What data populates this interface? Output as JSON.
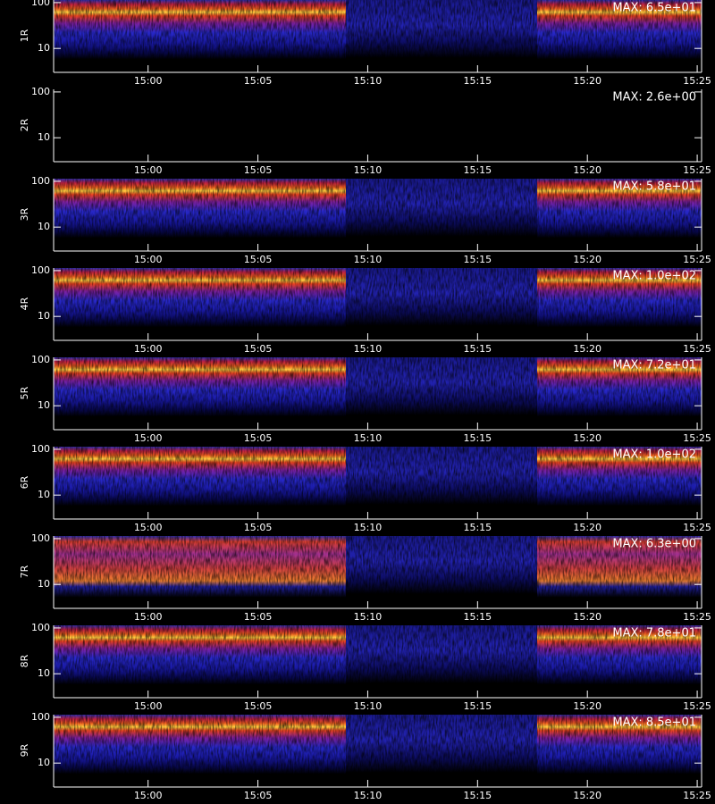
{
  "chart_data": [
    {
      "type": "spectrogram",
      "ylabel": "1R",
      "annotation": "MAX: 6.5e+01",
      "log_y": true,
      "ylim": [
        3,
        114
      ],
      "yticks": [
        10,
        100
      ],
      "xlim": [
        895.7,
        925.2
      ],
      "xticks": [
        {
          "value": 900,
          "label": "15:00"
        },
        {
          "value": 905,
          "label": "15:05"
        },
        {
          "value": 910,
          "label": "15:10"
        },
        {
          "value": 915,
          "label": "15:15"
        },
        {
          "value": 920,
          "label": "15:20"
        },
        {
          "value": 925,
          "label": "15:25"
        }
      ]
    },
    {
      "type": "spectrogram",
      "ylabel": "2R",
      "annotation": "MAX: 2.6e+00",
      "log_y": true,
      "ylim": [
        3,
        114
      ],
      "yticks": [
        10,
        100
      ],
      "xlim": [
        895.7,
        925.2
      ],
      "xticks": [
        {
          "value": 900,
          "label": "15:00"
        },
        {
          "value": 905,
          "label": "15:05"
        },
        {
          "value": 910,
          "label": "15:10"
        },
        {
          "value": 915,
          "label": "15:15"
        },
        {
          "value": 920,
          "label": "15:20"
        },
        {
          "value": 925,
          "label": "15:25"
        }
      ]
    },
    {
      "type": "spectrogram",
      "ylabel": "3R",
      "annotation": "MAX: 5.8e+01",
      "log_y": true,
      "ylim": [
        3,
        114
      ],
      "yticks": [
        10,
        100
      ],
      "xlim": [
        895.7,
        925.2
      ],
      "xticks": [
        {
          "value": 900,
          "label": "15:00"
        },
        {
          "value": 905,
          "label": "15:05"
        },
        {
          "value": 910,
          "label": "15:10"
        },
        {
          "value": 915,
          "label": "15:15"
        },
        {
          "value": 920,
          "label": "15:20"
        },
        {
          "value": 925,
          "label": "15:25"
        }
      ]
    },
    {
      "type": "spectrogram",
      "ylabel": "4R",
      "annotation": "MAX: 1.0e+02",
      "log_y": true,
      "ylim": [
        3,
        114
      ],
      "yticks": [
        10,
        100
      ],
      "xlim": [
        895.7,
        925.2
      ],
      "xticks": [
        {
          "value": 900,
          "label": "15:00"
        },
        {
          "value": 905,
          "label": "15:05"
        },
        {
          "value": 910,
          "label": "15:10"
        },
        {
          "value": 915,
          "label": "15:15"
        },
        {
          "value": 920,
          "label": "15:20"
        },
        {
          "value": 925,
          "label": "15:25"
        }
      ]
    },
    {
      "type": "spectrogram",
      "ylabel": "5R",
      "annotation": "MAX: 7.2e+01",
      "log_y": true,
      "ylim": [
        3,
        114
      ],
      "yticks": [
        10,
        100
      ],
      "xlim": [
        895.7,
        925.2
      ],
      "xticks": [
        {
          "value": 900,
          "label": "15:00"
        },
        {
          "value": 905,
          "label": "15:05"
        },
        {
          "value": 910,
          "label": "15:10"
        },
        {
          "value": 915,
          "label": "15:15"
        },
        {
          "value": 920,
          "label": "15:20"
        },
        {
          "value": 925,
          "label": "15:25"
        }
      ]
    },
    {
      "type": "spectrogram",
      "ylabel": "6R",
      "annotation": "MAX: 1.0e+02",
      "log_y": true,
      "ylim": [
        3,
        114
      ],
      "yticks": [
        10,
        100
      ],
      "xlim": [
        895.7,
        925.2
      ],
      "xticks": [
        {
          "value": 900,
          "label": "15:00"
        },
        {
          "value": 905,
          "label": "15:05"
        },
        {
          "value": 910,
          "label": "15:10"
        },
        {
          "value": 915,
          "label": "15:15"
        },
        {
          "value": 920,
          "label": "15:20"
        },
        {
          "value": 925,
          "label": "15:25"
        }
      ]
    },
    {
      "type": "spectrogram",
      "ylabel": "7R",
      "annotation": "MAX: 6.3e+00",
      "log_y": true,
      "ylim": [
        3,
        114
      ],
      "yticks": [
        10,
        100
      ],
      "xlim": [
        895.7,
        925.2
      ],
      "xticks": [
        {
          "value": 900,
          "label": "15:00"
        },
        {
          "value": 905,
          "label": "15:05"
        },
        {
          "value": 910,
          "label": "15:10"
        },
        {
          "value": 915,
          "label": "15:15"
        },
        {
          "value": 920,
          "label": "15:20"
        },
        {
          "value": 925,
          "label": "15:25"
        }
      ]
    },
    {
      "type": "spectrogram",
      "ylabel": "8R",
      "annotation": "MAX: 7.8e+01",
      "log_y": true,
      "ylim": [
        3,
        114
      ],
      "yticks": [
        10,
        100
      ],
      "xlim": [
        895.7,
        925.2
      ],
      "xticks": [
        {
          "value": 900,
          "label": "15:00"
        },
        {
          "value": 905,
          "label": "15:05"
        },
        {
          "value": 910,
          "label": "15:10"
        },
        {
          "value": 915,
          "label": "15:15"
        },
        {
          "value": 920,
          "label": "15:20"
        },
        {
          "value": 925,
          "label": "15:25"
        }
      ]
    },
    {
      "type": "spectrogram",
      "ylabel": "9R",
      "annotation": "MAX: 8.5e+01",
      "log_y": true,
      "ylim": [
        3,
        114
      ],
      "yticks": [
        10,
        100
      ],
      "xlim": [
        895.7,
        925.2
      ],
      "xticks": [
        {
          "value": 900,
          "label": "15:00"
        },
        {
          "value": 905,
          "label": "15:05"
        },
        {
          "value": 910,
          "label": "15:10"
        },
        {
          "value": 915,
          "label": "15:15"
        },
        {
          "value": 920,
          "label": "15:20"
        },
        {
          "value": 925,
          "label": "15:25"
        }
      ]
    }
  ]
}
